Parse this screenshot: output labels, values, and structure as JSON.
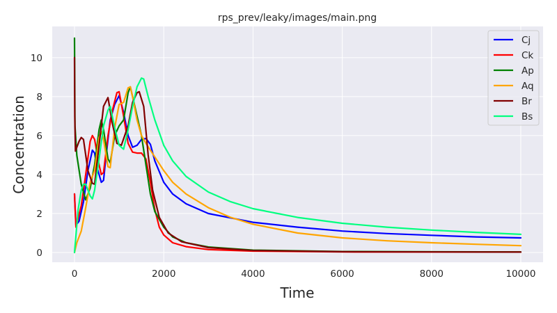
{
  "chart_data": {
    "type": "line",
    "title": "rps_prev/leaky/images/main.png",
    "xlabel": "Time",
    "ylabel": "Concentration",
    "xlim": [
      -500,
      10500
    ],
    "ylim": [
      -0.5,
      11.6
    ],
    "xticks": [
      0,
      2000,
      4000,
      6000,
      8000,
      10000
    ],
    "yticks": [
      0,
      2,
      4,
      6,
      8,
      10
    ],
    "grid": true,
    "legend_position": "top-right",
    "colors": {
      "background": "#eaeaf2",
      "grid": "#ffffff",
      "text": "#262626"
    },
    "series": [
      {
        "name": "Cj",
        "color": "#0000ff",
        "points": [
          [
            0,
            3.0
          ],
          [
            30,
            1.4
          ],
          [
            100,
            1.6
          ],
          [
            200,
            2.6
          ],
          [
            300,
            4.2
          ],
          [
            400,
            5.25
          ],
          [
            450,
            5.1
          ],
          [
            500,
            4.4
          ],
          [
            600,
            3.6
          ],
          [
            650,
            3.7
          ],
          [
            700,
            4.8
          ],
          [
            800,
            6.8
          ],
          [
            900,
            7.6
          ],
          [
            1000,
            8.05
          ],
          [
            1100,
            7.2
          ],
          [
            1200,
            6.0
          ],
          [
            1300,
            5.4
          ],
          [
            1400,
            5.5
          ],
          [
            1500,
            5.8
          ],
          [
            1600,
            5.85
          ],
          [
            1700,
            5.55
          ],
          [
            1800,
            4.7
          ],
          [
            2000,
            3.6
          ],
          [
            2200,
            3.0
          ],
          [
            2500,
            2.5
          ],
          [
            3000,
            2.0
          ],
          [
            4000,
            1.55
          ],
          [
            5000,
            1.3
          ],
          [
            6000,
            1.1
          ],
          [
            7000,
            0.97
          ],
          [
            8000,
            0.88
          ],
          [
            9000,
            0.8
          ],
          [
            10000,
            0.75
          ]
        ]
      },
      {
        "name": "Ck",
        "color": "#ff0000",
        "points": [
          [
            0,
            3.0
          ],
          [
            30,
            1.3
          ],
          [
            150,
            2.4
          ],
          [
            250,
            4.0
          ],
          [
            350,
            5.7
          ],
          [
            400,
            6.0
          ],
          [
            450,
            5.8
          ],
          [
            550,
            4.5
          ],
          [
            600,
            4.0
          ],
          [
            650,
            4.1
          ],
          [
            750,
            6.0
          ],
          [
            850,
            7.3
          ],
          [
            950,
            8.2
          ],
          [
            1000,
            8.25
          ],
          [
            1100,
            7.0
          ],
          [
            1200,
            5.6
          ],
          [
            1300,
            5.15
          ],
          [
            1400,
            5.1
          ],
          [
            1500,
            5.1
          ],
          [
            1600,
            4.8
          ],
          [
            1700,
            3.6
          ],
          [
            1800,
            2.2
          ],
          [
            1900,
            1.3
          ],
          [
            2000,
            0.9
          ],
          [
            2200,
            0.5
          ],
          [
            2500,
            0.3
          ],
          [
            3000,
            0.15
          ],
          [
            4000,
            0.07
          ],
          [
            6000,
            0.03
          ],
          [
            10000,
            0.02
          ]
        ]
      },
      {
        "name": "Ap",
        "color": "#008000",
        "points": [
          [
            0,
            11.0
          ],
          [
            10,
            6.5
          ],
          [
            50,
            5.0
          ],
          [
            150,
            3.5
          ],
          [
            250,
            2.7
          ],
          [
            350,
            3.3
          ],
          [
            450,
            4.5
          ],
          [
            550,
            6.3
          ],
          [
            600,
            6.8
          ],
          [
            650,
            6.3
          ],
          [
            750,
            4.8
          ],
          [
            800,
            4.6
          ],
          [
            900,
            6.0
          ],
          [
            1000,
            6.5
          ],
          [
            1100,
            6.8
          ],
          [
            1200,
            8.2
          ],
          [
            1250,
            8.5
          ],
          [
            1300,
            8.0
          ],
          [
            1400,
            7.0
          ],
          [
            1500,
            6.0
          ],
          [
            1600,
            4.5
          ],
          [
            1700,
            3.0
          ],
          [
            1800,
            2.1
          ],
          [
            2000,
            1.3
          ],
          [
            2200,
            0.8
          ],
          [
            2500,
            0.5
          ],
          [
            3000,
            0.28
          ],
          [
            4000,
            0.12
          ],
          [
            6000,
            0.05
          ],
          [
            10000,
            0.03
          ]
        ]
      },
      {
        "name": "Aq",
        "color": "#ffa500",
        "points": [
          [
            0,
            0.0
          ],
          [
            50,
            0.5
          ],
          [
            150,
            1.1
          ],
          [
            250,
            2.3
          ],
          [
            350,
            3.6
          ],
          [
            450,
            4.2
          ],
          [
            550,
            5.9
          ],
          [
            600,
            6.2
          ],
          [
            650,
            5.8
          ],
          [
            750,
            4.4
          ],
          [
            800,
            4.35
          ],
          [
            900,
            6.4
          ],
          [
            1000,
            7.6
          ],
          [
            1100,
            7.7
          ],
          [
            1200,
            8.45
          ],
          [
            1250,
            8.5
          ],
          [
            1300,
            8.0
          ],
          [
            1400,
            6.8
          ],
          [
            1500,
            6.0
          ],
          [
            1600,
            5.6
          ],
          [
            1800,
            4.9
          ],
          [
            2000,
            4.2
          ],
          [
            2200,
            3.6
          ],
          [
            2500,
            3.0
          ],
          [
            3000,
            2.3
          ],
          [
            3500,
            1.8
          ],
          [
            4000,
            1.45
          ],
          [
            5000,
            1.0
          ],
          [
            6000,
            0.75
          ],
          [
            7000,
            0.6
          ],
          [
            8000,
            0.5
          ],
          [
            9000,
            0.42
          ],
          [
            10000,
            0.35
          ]
        ]
      },
      {
        "name": "Br",
        "color": "#800000",
        "points": [
          [
            0,
            10.0
          ],
          [
            5,
            7.0
          ],
          [
            20,
            5.2
          ],
          [
            100,
            5.7
          ],
          [
            150,
            5.9
          ],
          [
            200,
            5.8
          ],
          [
            300,
            4.2
          ],
          [
            400,
            3.55
          ],
          [
            450,
            3.5
          ],
          [
            550,
            5.5
          ],
          [
            650,
            7.5
          ],
          [
            750,
            7.95
          ],
          [
            850,
            6.6
          ],
          [
            950,
            5.6
          ],
          [
            1050,
            5.5
          ],
          [
            1200,
            6.5
          ],
          [
            1300,
            7.7
          ],
          [
            1400,
            8.2
          ],
          [
            1450,
            8.25
          ],
          [
            1550,
            7.5
          ],
          [
            1650,
            5.0
          ],
          [
            1750,
            3.2
          ],
          [
            1900,
            1.8
          ],
          [
            2100,
            1.0
          ],
          [
            2400,
            0.55
          ],
          [
            3000,
            0.25
          ],
          [
            4000,
            0.1
          ],
          [
            6000,
            0.04
          ],
          [
            10000,
            0.02
          ]
        ]
      },
      {
        "name": "Bs",
        "color": "#00ff7f",
        "points": [
          [
            0,
            0.0
          ],
          [
            80,
            2.2
          ],
          [
            150,
            3.2
          ],
          [
            200,
            3.5
          ],
          [
            250,
            3.5
          ],
          [
            350,
            2.9
          ],
          [
            400,
            2.75
          ],
          [
            450,
            3.2
          ],
          [
            550,
            4.8
          ],
          [
            650,
            6.5
          ],
          [
            750,
            7.3
          ],
          [
            800,
            7.5
          ],
          [
            900,
            6.4
          ],
          [
            1000,
            5.5
          ],
          [
            1100,
            5.3
          ],
          [
            1200,
            6.3
          ],
          [
            1300,
            7.5
          ],
          [
            1400,
            8.5
          ],
          [
            1500,
            8.95
          ],
          [
            1550,
            8.9
          ],
          [
            1650,
            8.0
          ],
          [
            1800,
            6.8
          ],
          [
            2000,
            5.5
          ],
          [
            2200,
            4.7
          ],
          [
            2500,
            3.9
          ],
          [
            3000,
            3.1
          ],
          [
            3500,
            2.6
          ],
          [
            4000,
            2.25
          ],
          [
            5000,
            1.8
          ],
          [
            6000,
            1.5
          ],
          [
            7000,
            1.3
          ],
          [
            8000,
            1.15
          ],
          [
            9000,
            1.03
          ],
          [
            10000,
            0.93
          ]
        ]
      }
    ]
  }
}
